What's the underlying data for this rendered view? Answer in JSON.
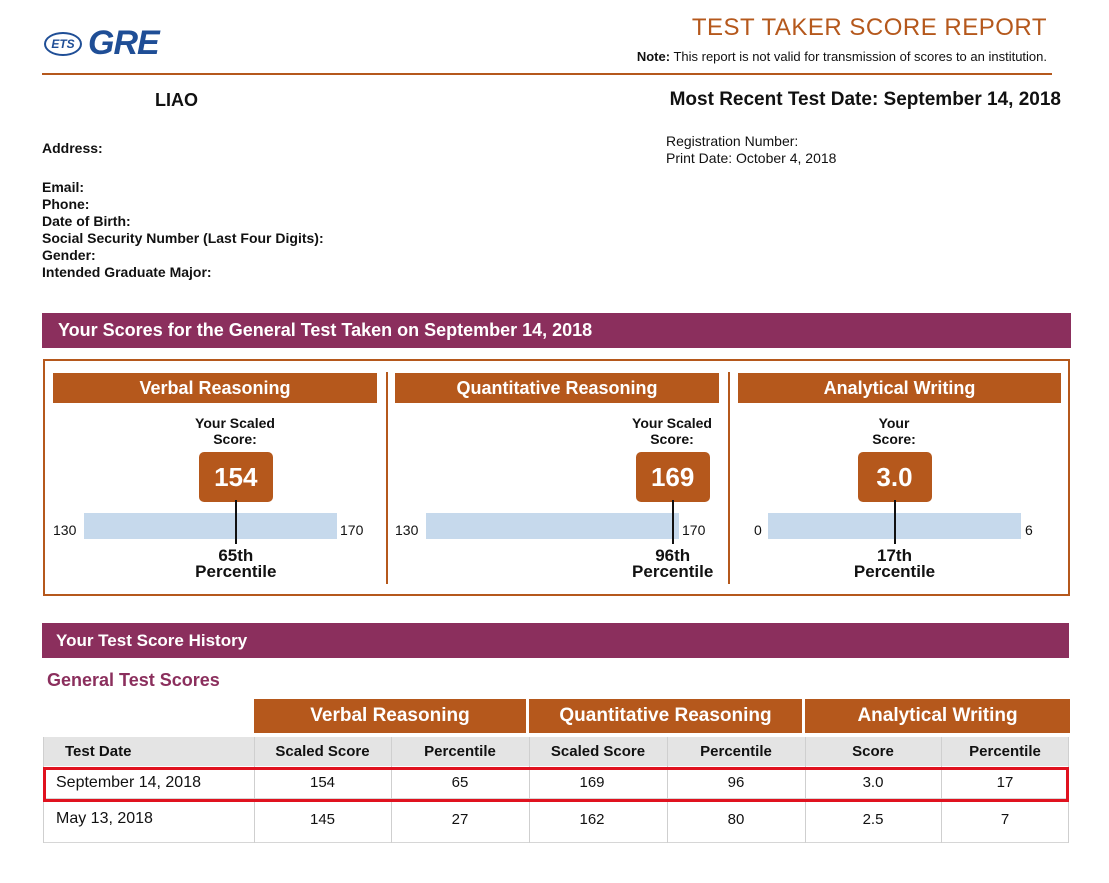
{
  "header": {
    "logo_badge": "ETS",
    "logo_text": "GRE",
    "title": "TEST TAKER SCORE REPORT",
    "note_label": "Note:",
    "note_text": "This report is not valid for transmission of scores to an institution."
  },
  "candidate": {
    "name": "LIAO",
    "recent_test_date": "Most Recent Test Date: September 14, 2018",
    "address_label": "Address:",
    "registration_label": "Registration Number:",
    "print_date": "Print Date: October 4, 2018",
    "fields": [
      "Email:",
      "Phone:",
      "Date of Birth:",
      "Social Security Number (Last Four Digits):",
      "Gender:",
      "Intended Graduate Major:"
    ]
  },
  "scores_section": {
    "title": "Your Scores for the General Test Taken on September 14, 2018",
    "panels": [
      {
        "name": "Verbal Reasoning",
        "score_label_1": "Your Scaled",
        "score_label_2": "Score:",
        "score": "154",
        "min": "130",
        "max": "170",
        "percentile": "65th",
        "percentile_word": "Percentile",
        "score_value": 154,
        "min_value": 130,
        "max_value": 170
      },
      {
        "name": "Quantitative Reasoning",
        "score_label_1": "Your Scaled",
        "score_label_2": "Score:",
        "score": "169",
        "min": "130",
        "max": "170",
        "percentile": "96th",
        "percentile_word": "Percentile",
        "score_value": 169,
        "min_value": 130,
        "max_value": 170
      },
      {
        "name": "Analytical Writing",
        "score_label_1": "Your",
        "score_label_2": "Score:",
        "score": "3.0",
        "min": "0",
        "max": "6",
        "percentile": "17th",
        "percentile_word": "Percentile",
        "score_value": 3.0,
        "min_value": 0,
        "max_value": 6
      }
    ]
  },
  "history": {
    "title": "Your Test Score History",
    "subtitle": "General Test Scores",
    "groups": [
      "Verbal Reasoning",
      "Quantitative Reasoning",
      "Analytical Writing"
    ],
    "columns": [
      "Test Date",
      "Scaled Score",
      "Percentile",
      "Scaled Score",
      "Percentile",
      "Score",
      "Percentile"
    ],
    "rows": [
      [
        "September 14, 2018",
        "154",
        "65",
        "169",
        "96",
        "3.0",
        "17"
      ],
      [
        "May 13, 2018",
        "145",
        "27",
        "162",
        "80",
        "2.5",
        "7"
      ]
    ]
  },
  "colors": {
    "accent": "#b5581c",
    "section_bar": "#8b2f5d",
    "range_bar": "#c6d9ec",
    "highlight": "#e0121f",
    "logo": "#1f4e96"
  }
}
